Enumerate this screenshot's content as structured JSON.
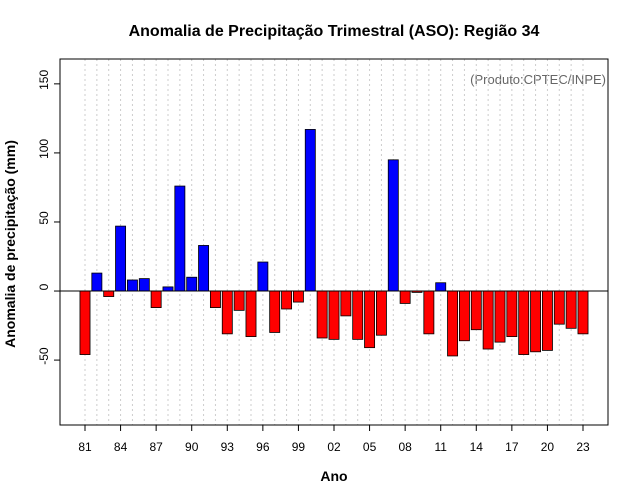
{
  "chart_data": {
    "type": "bar",
    "title": "Anomalia de Precipitação Trimestral (ASO): Região 34",
    "xlabel": "Ano",
    "ylabel": "Anomalia de precipitação (mm)",
    "annotation": "(Produto:CPTEC/INPE)",
    "ylim": [
      -97,
      168
    ],
    "y_ticks": [
      -50,
      0,
      50,
      100,
      150
    ],
    "y_tick_labels": [
      "-50",
      "0",
      "50",
      "100",
      "150"
    ],
    "x_tick_labels": [
      "81",
      "84",
      "87",
      "90",
      "93",
      "96",
      "99",
      "02",
      "05",
      "08",
      "11",
      "14",
      "17",
      "20",
      "23"
    ],
    "x_tick_years": [
      1981,
      1984,
      1987,
      1990,
      1993,
      1996,
      1999,
      2002,
      2005,
      2008,
      2011,
      2014,
      2017,
      2020,
      2023
    ],
    "positive_color": "#0000ff",
    "negative_color": "#ff0000",
    "categories": [
      1981,
      1982,
      1983,
      1984,
      1985,
      1986,
      1987,
      1988,
      1989,
      1990,
      1991,
      1992,
      1993,
      1994,
      1995,
      1996,
      1997,
      1998,
      1999,
      2000,
      2001,
      2002,
      2003,
      2004,
      2005,
      2006,
      2007,
      2008,
      2009,
      2010,
      2011,
      2012,
      2013,
      2014,
      2015,
      2016,
      2017,
      2018,
      2019,
      2020,
      2021,
      2022,
      2023
    ],
    "values": [
      -46,
      13,
      -4,
      47,
      8,
      9,
      -12,
      3,
      76,
      10,
      33,
      -12,
      -31,
      -14,
      -33,
      21,
      -30,
      -13,
      -8,
      117,
      -34,
      -35,
      -18,
      -35,
      -41,
      -32,
      95,
      -9,
      -1,
      -31,
      6,
      -47,
      -36,
      -28,
      -42,
      -37,
      -33,
      -46,
      -44,
      -43,
      -24,
      -27,
      -31
    ]
  }
}
